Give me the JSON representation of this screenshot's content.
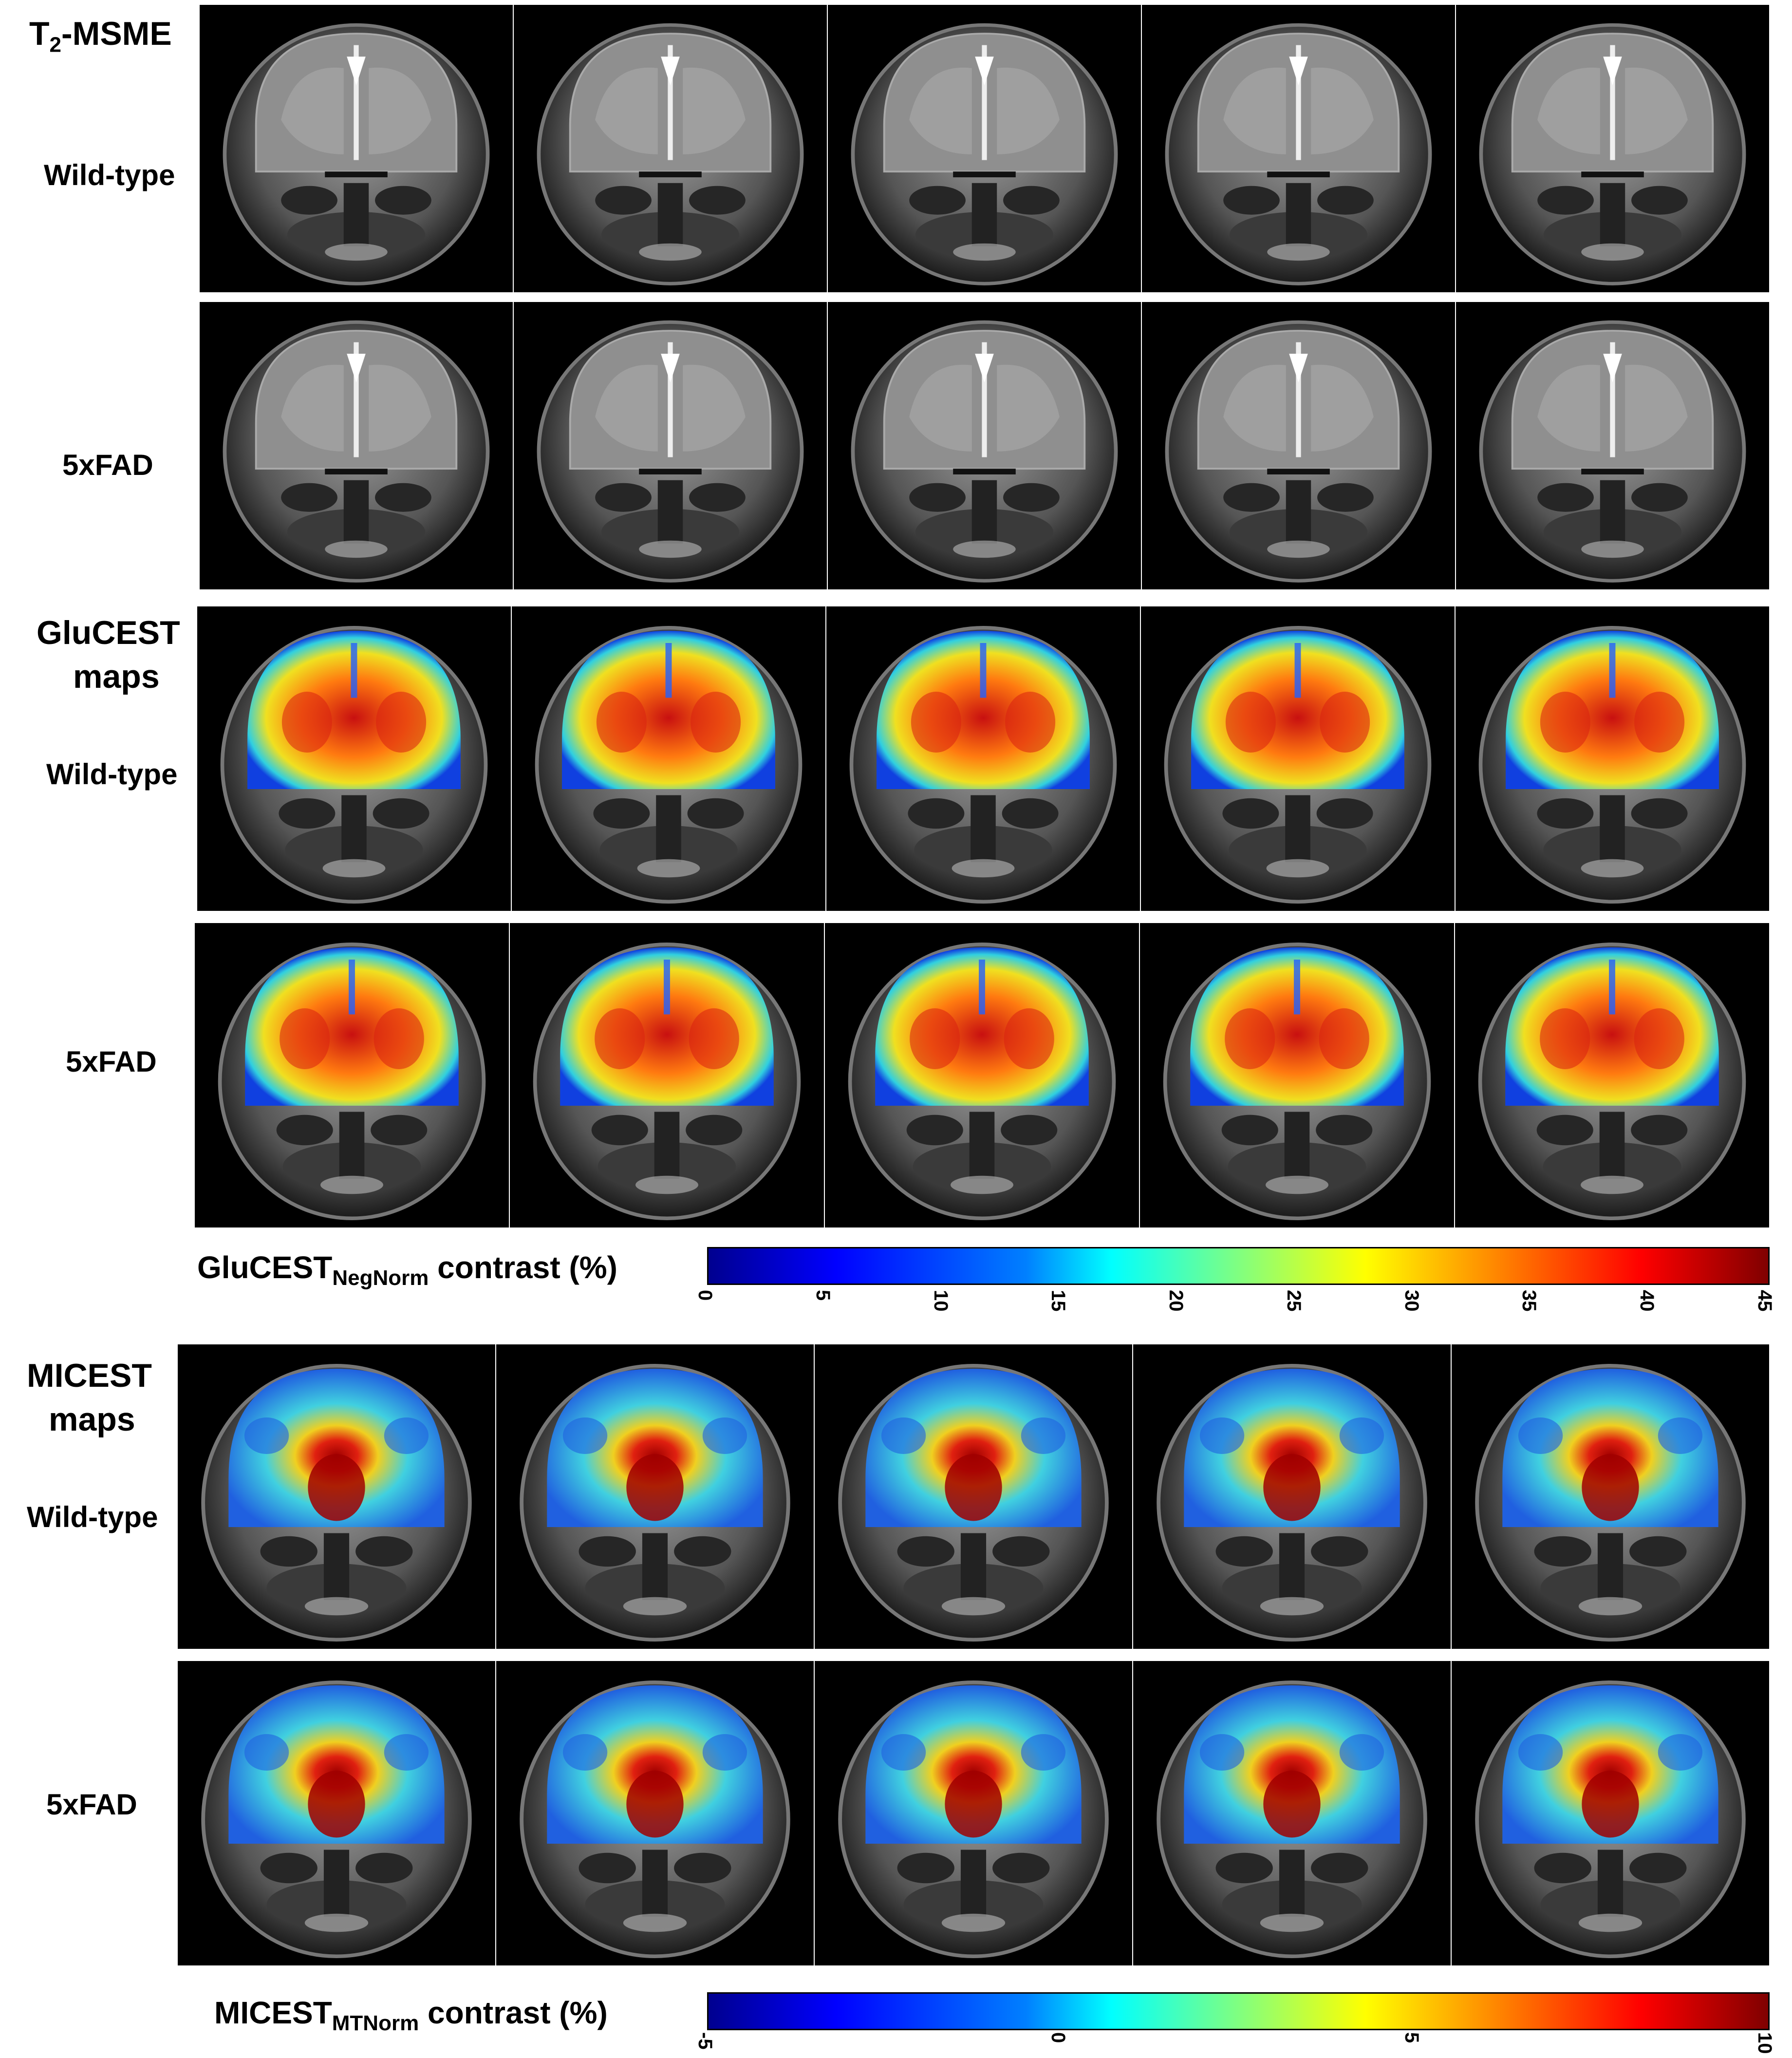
{
  "row_labels": {
    "t2_title": "T",
    "t2_sub": "2",
    "t2_rest": "-MSME",
    "wt1": "Wild-type",
    "fad1": "5xFAD",
    "glu_title_1": "GluCEST",
    "glu_title_2": "maps",
    "wt2": "Wild-type",
    "fad2": "5xFAD",
    "mic_title_1": "MICEST",
    "mic_title_2": "maps",
    "wt3": "Wild-type",
    "fad3": "5xFAD"
  },
  "glu_colorbar": {
    "title": "GluCEST",
    "subscript": "NegNorm",
    "suffix": " contrast (%)",
    "ticks": [
      "0",
      "5",
      "10",
      "15",
      "20",
      "25",
      "30",
      "35",
      "40",
      "45"
    ]
  },
  "mic_colorbar": {
    "title": "MICEST",
    "subscript": "MTNorm",
    "suffix": " contrast (%)",
    "ticks": [
      "-5",
      "0",
      "5",
      "10"
    ]
  },
  "colors": {
    "background": "#ffffff",
    "panel": "#000000",
    "brain_gray": "#8a8a8a",
    "map_warm": "#e03010",
    "map_cool": "#20c0e0"
  }
}
